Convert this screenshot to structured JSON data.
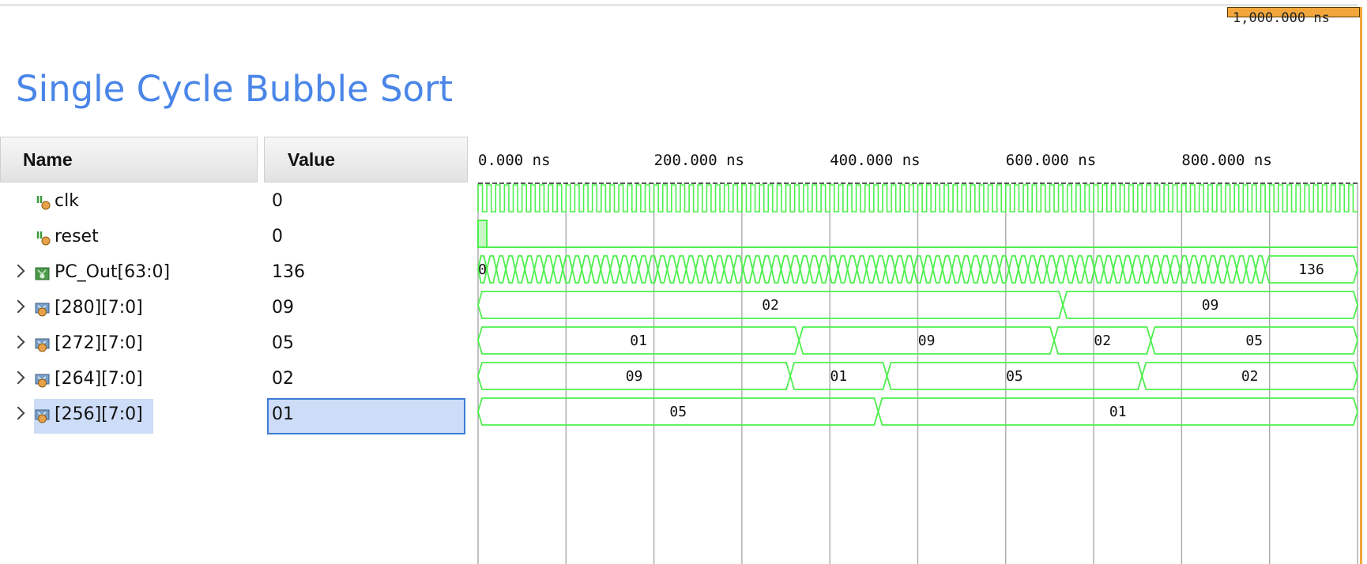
{
  "title": "Single Cycle Bubble Sort",
  "cursor_label": "1,000.000 ns",
  "columns": {
    "name": "Name",
    "value": "Value"
  },
  "timeline": {
    "unit": "ns",
    "range_ns": [
      0,
      1000
    ],
    "ticks": [
      "0.000 ns",
      "200.000 ns",
      "400.000 ns",
      "600.000 ns",
      "800.000 ns"
    ]
  },
  "colors": {
    "wave": "#4cf04c",
    "wave_fill": "#c8f7c5",
    "grid": "#a9a9a9",
    "title": "#4a86e8",
    "cursor": "#f3a63b",
    "selection": "#cddcf7"
  },
  "signals": [
    {
      "name": "clk",
      "value": "0",
      "kind": "clock",
      "icon": "bit-signal-icon",
      "expandable": false,
      "clock_cycles": 100
    },
    {
      "name": "reset",
      "value": "0",
      "kind": "bit",
      "icon": "bit-signal-icon",
      "expandable": false,
      "high_until_ns": 10
    },
    {
      "name": "PC_Out[63:0]",
      "value": "136",
      "kind": "counter",
      "icon": "bus-signal-icon",
      "expandable": true,
      "segments": [
        {
          "from_ns": 0,
          "to_ns": 10,
          "label": "0"
        },
        {
          "from_ns": 895,
          "to_ns": 1000,
          "label": "136"
        }
      ]
    },
    {
      "name": "[280][7:0]",
      "value": "09",
      "kind": "bus",
      "icon": "memory-signal-icon",
      "expandable": true,
      "segments": [
        {
          "from_ns": 0,
          "to_ns": 665,
          "label": "02"
        },
        {
          "from_ns": 665,
          "to_ns": 1000,
          "label": "09"
        }
      ]
    },
    {
      "name": "[272][7:0]",
      "value": "05",
      "kind": "bus",
      "icon": "memory-signal-icon",
      "expandable": true,
      "segments": [
        {
          "from_ns": 0,
          "to_ns": 365,
          "label": "01"
        },
        {
          "from_ns": 365,
          "to_ns": 655,
          "label": "09"
        },
        {
          "from_ns": 655,
          "to_ns": 765,
          "label": "02"
        },
        {
          "from_ns": 765,
          "to_ns": 1000,
          "label": "05"
        }
      ]
    },
    {
      "name": "[264][7:0]",
      "value": "02",
      "kind": "bus",
      "icon": "memory-signal-icon",
      "expandable": true,
      "segments": [
        {
          "from_ns": 0,
          "to_ns": 355,
          "label": "09"
        },
        {
          "from_ns": 355,
          "to_ns": 465,
          "label": "01"
        },
        {
          "from_ns": 465,
          "to_ns": 755,
          "label": "05"
        },
        {
          "from_ns": 755,
          "to_ns": 1000,
          "label": "02"
        }
      ]
    },
    {
      "name": "[256][7:0]",
      "value": "01",
      "kind": "bus",
      "icon": "memory-signal-icon",
      "expandable": true,
      "selected": true,
      "segments": [
        {
          "from_ns": 0,
          "to_ns": 455,
          "label": "05"
        },
        {
          "from_ns": 455,
          "to_ns": 1000,
          "label": "01"
        }
      ]
    }
  ]
}
